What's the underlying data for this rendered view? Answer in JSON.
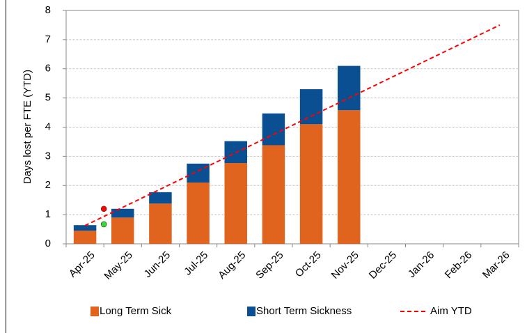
{
  "chart_data": {
    "type": "stacked_bar_line",
    "ylabel": "Days lost per FTE (YTD)",
    "categories": [
      "Apr-25",
      "May-25",
      "Jun-25",
      "Jul-25",
      "Aug-25",
      "Sep-25",
      "Oct-25",
      "Nov-25",
      "Dec-25",
      "Jan-26",
      "Feb-26",
      "Mar-26"
    ],
    "series": [
      {
        "name": "Long Term Sick",
        "color": "#e0631e",
        "values": [
          0.45,
          0.9,
          1.38,
          2.1,
          2.77,
          3.38,
          4.1,
          4.58,
          null,
          null,
          null,
          null
        ]
      },
      {
        "name": "Short Term Sickness",
        "color": "#0a4f91",
        "values": [
          0.19,
          0.3,
          0.39,
          0.65,
          0.75,
          1.09,
          1.2,
          1.52,
          null,
          null,
          null,
          null
        ]
      },
      {
        "name": "Aim YTD",
        "type": "line",
        "color": "#ff0000",
        "dashed": true,
        "values": [
          0.625,
          1.25,
          1.875,
          2.5,
          3.125,
          3.75,
          4.375,
          5.0,
          5.625,
          6.25,
          6.875,
          7.5
        ]
      }
    ],
    "points": [
      {
        "color": "#ff0000",
        "value": 1.2
      },
      {
        "color": "#33dd33",
        "value": 0.67
      }
    ],
    "ylim": [
      0,
      8
    ],
    "yticks": [
      0,
      1,
      2,
      3,
      4,
      5,
      6,
      7,
      8
    ],
    "grid": true,
    "legend": "bottom"
  }
}
